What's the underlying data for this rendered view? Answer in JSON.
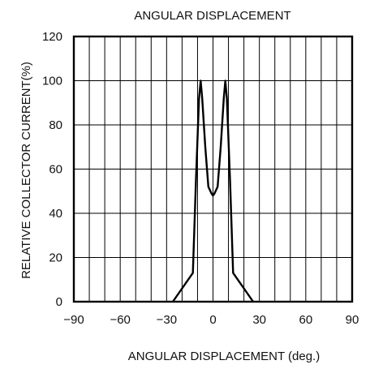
{
  "chart_data": {
    "type": "line",
    "title": "ANGULAR DISPLACEMENT",
    "xlabel": "ANGULAR DISPLACEMENT (deg.)",
    "ylabel": "RELATIVE COLLECTOR CURRENT(%)",
    "xlim": [
      -90,
      90
    ],
    "ylim": [
      0,
      120
    ],
    "grid": true,
    "x_ticks": [
      -90,
      -60,
      -30,
      0,
      30,
      60,
      90
    ],
    "x_tick_labels": [
      "−90",
      "−60",
      "−30",
      "0",
      "30",
      "60",
      "90"
    ],
    "y_ticks": [
      0,
      20,
      40,
      60,
      80,
      100,
      120
    ],
    "y_tick_labels": [
      "0",
      "20",
      "40",
      "60",
      "80",
      "100",
      "120"
    ],
    "series": [
      {
        "x": [
          -26,
          -13,
          -11,
          -9,
          -8,
          -7,
          -5,
          -3,
          -1,
          0,
          1,
          3,
          5,
          7,
          8,
          9,
          11,
          13,
          26
        ],
        "y": [
          0,
          13,
          55,
          92,
          100,
          92,
          70,
          52,
          49,
          48,
          49,
          52,
          70,
          92,
          100,
          92,
          55,
          13,
          0
        ]
      }
    ]
  }
}
